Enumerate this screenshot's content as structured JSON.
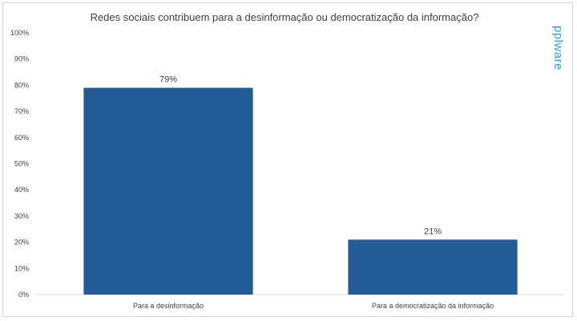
{
  "chart_data": {
    "type": "bar",
    "title": "Redes sociais contribuem para a desinformação ou democratização da informação?",
    "categories": [
      "Para a desinformação",
      "Para a democratização da informação"
    ],
    "values": [
      79,
      21
    ],
    "data_labels": [
      "79%",
      "21%"
    ],
    "ylim": [
      0,
      100
    ],
    "yticks": [
      0,
      10,
      20,
      30,
      40,
      50,
      60,
      70,
      80,
      90,
      100
    ],
    "ytick_labels": [
      "0%",
      "10%",
      "20%",
      "30%",
      "40%",
      "50%",
      "60%",
      "70%",
      "80%",
      "90%",
      "100%"
    ],
    "bar_color": "#235a98",
    "grid": false,
    "legend": "none"
  },
  "watermark": "pplware",
  "colors": {
    "bar": "#235a98",
    "watermark": "#29a3d8",
    "text": "#404040"
  }
}
